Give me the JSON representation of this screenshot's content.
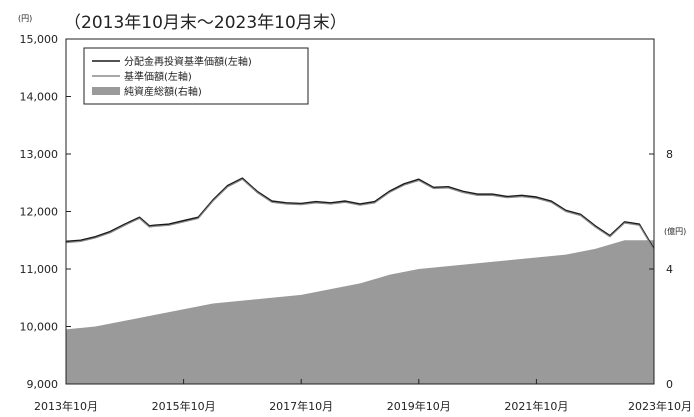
{
  "chart_data": {
    "type": "line",
    "title": "（2013年10月末～2023年10月末）",
    "left_axis_unit": "(円)",
    "right_axis_unit": "(億円)",
    "ylim_left": [
      9000,
      15000
    ],
    "left_ticks": [
      "15,000",
      "14,000",
      "13,000",
      "12,000",
      "11,000",
      "10,000",
      "9,000"
    ],
    "ylim_right": [
      0,
      12
    ],
    "right_ticks": [
      "8",
      "4",
      "0"
    ],
    "x_ticks": [
      "2013年10月",
      "2015年10月",
      "2017年10月",
      "2019年10月",
      "2021年10月",
      "2023年10月"
    ],
    "x_range": [
      "2013-10",
      "2023-10"
    ],
    "legend_position": "top-left",
    "grid": false,
    "series": [
      {
        "name": "分配金再投資基準価額(左軸)",
        "axis": "left",
        "style": "line",
        "color": "#1a1a1a",
        "x": [
          "2013-10",
          "2014-01",
          "2014-04",
          "2014-07",
          "2014-10",
          "2015-01",
          "2015-03",
          "2015-04",
          "2015-07",
          "2015-10",
          "2016-01",
          "2016-04",
          "2016-07",
          "2016-10",
          "2017-01",
          "2017-04",
          "2017-07",
          "2017-10",
          "2018-01",
          "2018-04",
          "2018-07",
          "2018-10",
          "2019-01",
          "2019-04",
          "2019-07",
          "2019-10",
          "2020-01",
          "2020-04",
          "2020-07",
          "2020-10",
          "2021-01",
          "2021-04",
          "2021-07",
          "2021-10",
          "2022-01",
          "2022-04",
          "2022-07",
          "2022-10",
          "2023-01",
          "2023-04",
          "2023-07",
          "2023-10"
        ],
        "values": [
          11480,
          11500,
          11560,
          11650,
          11780,
          11900,
          11750,
          11760,
          11780,
          11840,
          11900,
          12200,
          12450,
          12580,
          12350,
          12180,
          12150,
          12140,
          12170,
          12150,
          12180,
          12130,
          12170,
          12350,
          12480,
          12560,
          12420,
          12430,
          12350,
          12300,
          12300,
          12260,
          12280,
          12250,
          12180,
          12020,
          11950,
          11750,
          11580,
          11820,
          11780,
          11350
        ]
      },
      {
        "name": "基準価額(左軸)",
        "axis": "left",
        "style": "line",
        "color": "#8a8a8a",
        "x": [
          "2013-10",
          "2014-01",
          "2014-04",
          "2014-07",
          "2014-10",
          "2015-01",
          "2015-03",
          "2015-04",
          "2015-07",
          "2015-10",
          "2016-01",
          "2016-04",
          "2016-07",
          "2016-10",
          "2017-01",
          "2017-04",
          "2017-07",
          "2017-10",
          "2018-01",
          "2018-04",
          "2018-07",
          "2018-10",
          "2019-01",
          "2019-04",
          "2019-07",
          "2019-10",
          "2020-01",
          "2020-04",
          "2020-07",
          "2020-10",
          "2021-01",
          "2021-04",
          "2021-07",
          "2021-10",
          "2022-01",
          "2022-04",
          "2022-07",
          "2022-10",
          "2023-01",
          "2023-04",
          "2023-07",
          "2023-10"
        ],
        "values": [
          11460,
          11480,
          11540,
          11630,
          11760,
          11880,
          11730,
          11740,
          11760,
          11820,
          11880,
          12180,
          12430,
          12560,
          12330,
          12160,
          12130,
          12120,
          12150,
          12130,
          12160,
          12110,
          12150,
          12330,
          12460,
          12540,
          12400,
          12410,
          12330,
          12280,
          12280,
          12240,
          12260,
          12230,
          12160,
          12000,
          11930,
          11730,
          11560,
          11800,
          11760,
          11330
        ]
      },
      {
        "name": "純資産総額(右軸)",
        "axis": "right",
        "style": "area",
        "color": "#9a9a9a",
        "x": [
          "2013-10",
          "2014-04",
          "2014-10",
          "2015-04",
          "2015-10",
          "2016-04",
          "2016-10",
          "2017-04",
          "2017-10",
          "2018-04",
          "2018-10",
          "2019-04",
          "2019-10",
          "2020-04",
          "2020-10",
          "2021-04",
          "2021-10",
          "2022-04",
          "2022-10",
          "2023-04",
          "2023-10"
        ],
        "values": [
          1.9,
          2.0,
          2.2,
          2.4,
          2.6,
          2.8,
          2.9,
          3.0,
          3.1,
          3.3,
          3.5,
          3.8,
          4.0,
          4.1,
          4.2,
          4.3,
          4.4,
          4.5,
          4.7,
          5.0,
          5.0
        ]
      }
    ]
  }
}
